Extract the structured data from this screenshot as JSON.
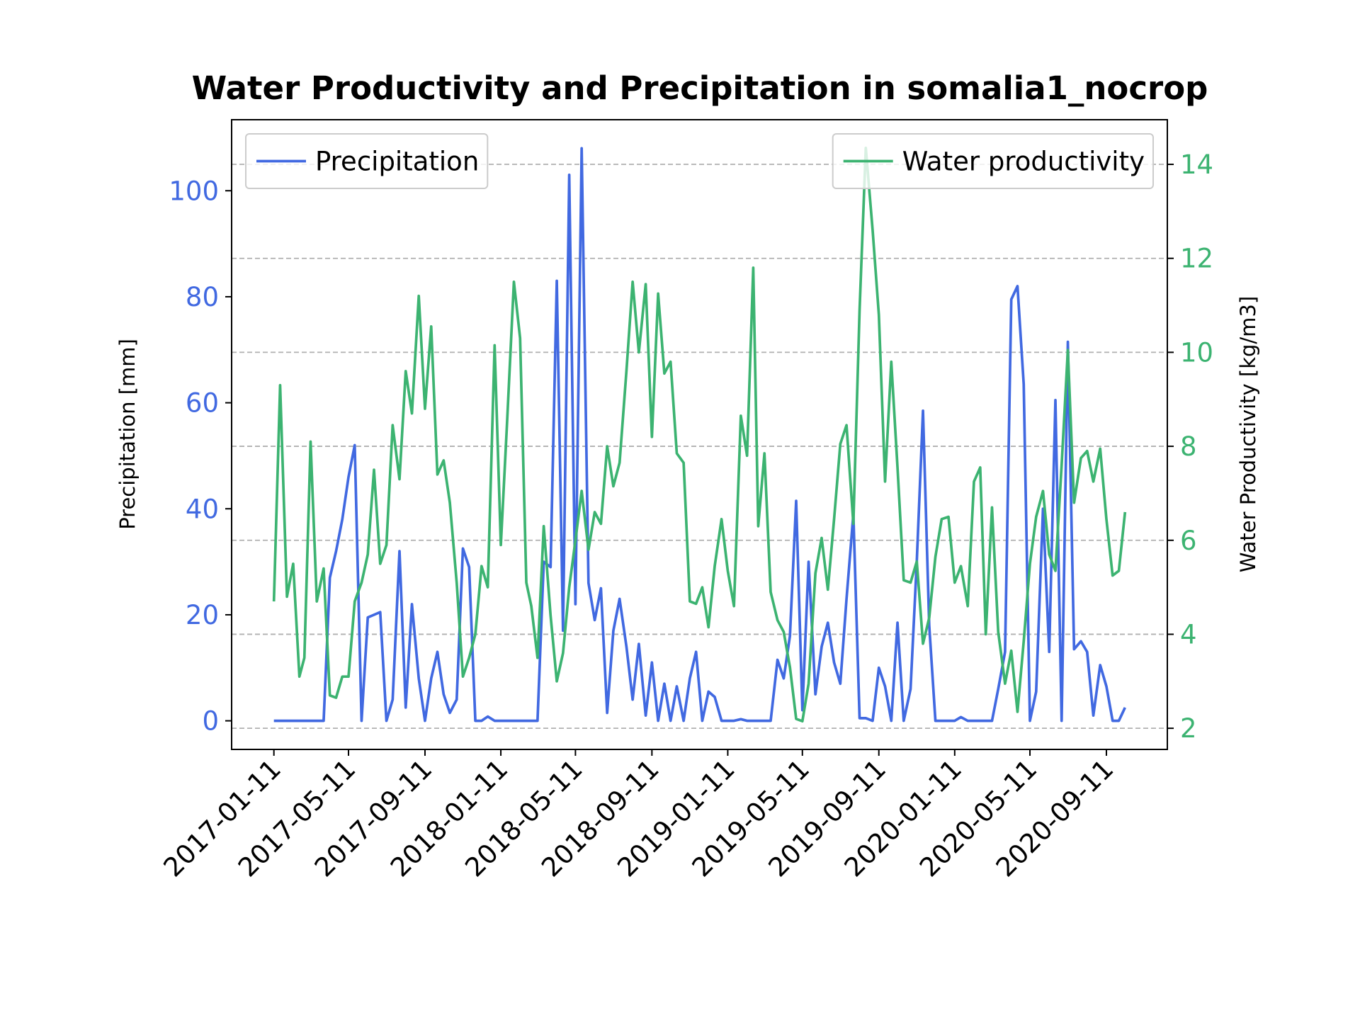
{
  "chart_data": {
    "type": "line",
    "title": "Water Productivity and Precipitation in somalia1_nocrop",
    "ylabel": "Precipitation [mm]",
    "y2label": "Water Productivity [kg/m3]",
    "x": [
      "2017-01-11",
      "2017-01-21",
      "2017-02-01",
      "2017-02-11",
      "2017-02-21",
      "2017-03-01",
      "2017-03-11",
      "2017-03-21",
      "2017-04-01",
      "2017-04-11",
      "2017-04-21",
      "2017-05-01",
      "2017-05-11",
      "2017-05-21",
      "2017-06-01",
      "2017-06-11",
      "2017-06-21",
      "2017-07-01",
      "2017-07-11",
      "2017-07-21",
      "2017-08-01",
      "2017-08-11",
      "2017-08-21",
      "2017-09-01",
      "2017-09-11",
      "2017-09-21",
      "2017-10-01",
      "2017-10-11",
      "2017-10-21",
      "2017-11-01",
      "2017-11-11",
      "2017-11-21",
      "2017-12-01",
      "2017-12-11",
      "2017-12-21",
      "2018-01-01",
      "2018-01-11",
      "2018-01-21",
      "2018-02-01",
      "2018-02-11",
      "2018-02-21",
      "2018-03-01",
      "2018-03-11",
      "2018-03-21",
      "2018-04-01",
      "2018-04-11",
      "2018-04-21",
      "2018-05-01",
      "2018-05-11",
      "2018-05-21",
      "2018-06-01",
      "2018-06-11",
      "2018-06-21",
      "2018-07-01",
      "2018-07-11",
      "2018-07-21",
      "2018-08-01",
      "2018-08-11",
      "2018-08-21",
      "2018-09-01",
      "2018-09-11",
      "2018-09-21",
      "2018-10-01",
      "2018-10-11",
      "2018-10-21",
      "2018-11-01",
      "2018-11-11",
      "2018-11-21",
      "2018-12-01",
      "2018-12-11",
      "2018-12-21",
      "2019-01-01",
      "2019-01-11",
      "2019-01-21",
      "2019-02-01",
      "2019-02-11",
      "2019-02-21",
      "2019-03-01",
      "2019-03-11",
      "2019-03-21",
      "2019-04-01",
      "2019-04-11",
      "2019-04-21",
      "2019-05-01",
      "2019-05-11",
      "2019-05-21",
      "2019-06-01",
      "2019-06-11",
      "2019-06-21",
      "2019-07-01",
      "2019-07-11",
      "2019-07-21",
      "2019-08-01",
      "2019-08-11",
      "2019-08-21",
      "2019-09-01",
      "2019-09-11",
      "2019-09-21",
      "2019-10-01",
      "2019-10-11",
      "2019-10-21",
      "2019-11-01",
      "2019-11-11",
      "2019-11-21",
      "2019-12-01",
      "2019-12-11",
      "2019-12-21",
      "2020-01-01",
      "2020-01-11",
      "2020-01-21",
      "2020-02-01",
      "2020-02-11",
      "2020-02-21",
      "2020-03-01",
      "2020-03-11",
      "2020-03-21",
      "2020-04-01",
      "2020-04-11",
      "2020-04-21",
      "2020-05-01",
      "2020-05-11",
      "2020-05-21",
      "2020-06-01",
      "2020-06-11",
      "2020-06-21",
      "2020-07-01",
      "2020-07-11",
      "2020-07-21",
      "2020-08-01",
      "2020-08-11",
      "2020-08-21",
      "2020-09-01",
      "2020-09-11",
      "2020-09-21",
      "2020-10-01",
      "2020-10-11"
    ],
    "series": [
      {
        "name": "Precipitation",
        "color": "#4169e1",
        "axis": "y",
        "legend_loc": "upper left",
        "values": [
          0,
          0,
          0,
          0,
          0,
          0,
          0,
          0,
          0,
          27,
          32,
          38,
          46,
          52,
          0,
          19.5,
          20,
          20.5,
          0,
          4,
          32,
          2.5,
          22,
          8,
          0,
          8,
          13,
          5,
          1.5,
          4,
          32.5,
          29,
          0,
          0,
          0.8,
          0,
          0,
          0,
          0,
          0,
          0,
          0,
          0,
          30,
          29,
          83,
          17,
          103,
          22,
          108,
          26,
          19,
          25,
          1.5,
          17,
          23,
          14,
          4,
          14.5,
          1,
          11,
          0,
          7,
          0,
          6.5,
          0,
          8,
          13,
          0,
          5.5,
          4.5,
          0,
          0,
          0,
          0.3,
          0,
          0,
          0,
          0,
          0,
          11.5,
          8,
          16,
          41.5,
          2,
          30,
          5,
          14,
          18.5,
          11,
          7,
          23,
          39,
          0.5,
          0.5,
          0,
          10,
          6.5,
          0,
          18.5,
          0,
          6,
          30,
          58.5,
          18,
          0,
          0,
          0,
          0,
          0.7,
          0,
          0,
          0,
          0,
          0,
          6,
          13,
          79.5,
          82,
          63.5,
          0,
          5.5,
          40,
          13,
          60.5,
          0,
          71.5,
          13.5,
          15,
          13,
          1,
          10.5,
          6.5,
          0,
          0,
          2.5
        ]
      },
      {
        "name": "Water productivity",
        "color": "#3cb371",
        "axis": "y2",
        "legend_loc": "upper right",
        "values": [
          4.7,
          9.3,
          4.8,
          5.5,
          3.1,
          3.5,
          8.1,
          4.7,
          5.4,
          2.7,
          2.65,
          3.1,
          3.1,
          4.7,
          5.1,
          5.7,
          7.5,
          5.5,
          5.9,
          8.45,
          7.3,
          9.6,
          8.7,
          11.2,
          8.8,
          10.55,
          7.4,
          7.7,
          6.8,
          5.1,
          3.1,
          3.5,
          4.0,
          5.45,
          5.0,
          10.15,
          5.9,
          8.5,
          11.5,
          10.3,
          5.1,
          4.6,
          3.5,
          6.3,
          4.4,
          3.0,
          3.6,
          5.0,
          6.0,
          7.05,
          5.8,
          6.6,
          6.35,
          8.0,
          7.15,
          7.65,
          9.6,
          11.5,
          10.0,
          11.45,
          8.2,
          11.25,
          9.55,
          9.8,
          7.85,
          7.65,
          4.7,
          4.65,
          5.0,
          4.15,
          5.45,
          6.45,
          5.35,
          4.6,
          8.65,
          7.8,
          11.8,
          6.3,
          7.85,
          4.9,
          4.3,
          4.05,
          3.3,
          2.2,
          2.15,
          2.95,
          5.3,
          6.05,
          4.95,
          6.45,
          8.05,
          8.45,
          6.35,
          10.9,
          14.35,
          12.6,
          10.8,
          7.25,
          9.8,
          7.55,
          5.15,
          5.1,
          5.55,
          3.8,
          4.35,
          5.65,
          6.45,
          6.5,
          5.1,
          5.45,
          4.6,
          7.25,
          7.55,
          4.0,
          6.7,
          4.05,
          2.95,
          3.65,
          2.35,
          3.85,
          5.5,
          6.5,
          7.05,
          5.7,
          5.35,
          7.6,
          10.05,
          6.8,
          7.75,
          7.9,
          7.25,
          7.95,
          6.45,
          5.25,
          5.35,
          6.6
        ]
      }
    ],
    "xlim": [
      "2016-11-04",
      "2020-12-18"
    ],
    "xticks": [
      "2017-01-11",
      "2017-05-11",
      "2017-09-11",
      "2018-01-11",
      "2018-05-11",
      "2018-09-11",
      "2019-01-11",
      "2019-05-11",
      "2019-09-11",
      "2020-01-11",
      "2020-05-11",
      "2020-09-11"
    ],
    "ylim": [
      -5.4,
      113.4
    ],
    "yticks": [
      0,
      20,
      40,
      60,
      80,
      100
    ],
    "y2lim": [
      1.55,
      14.95
    ],
    "y2ticks": [
      2,
      4,
      6,
      8,
      10,
      12,
      14
    ],
    "grid": "y2"
  }
}
